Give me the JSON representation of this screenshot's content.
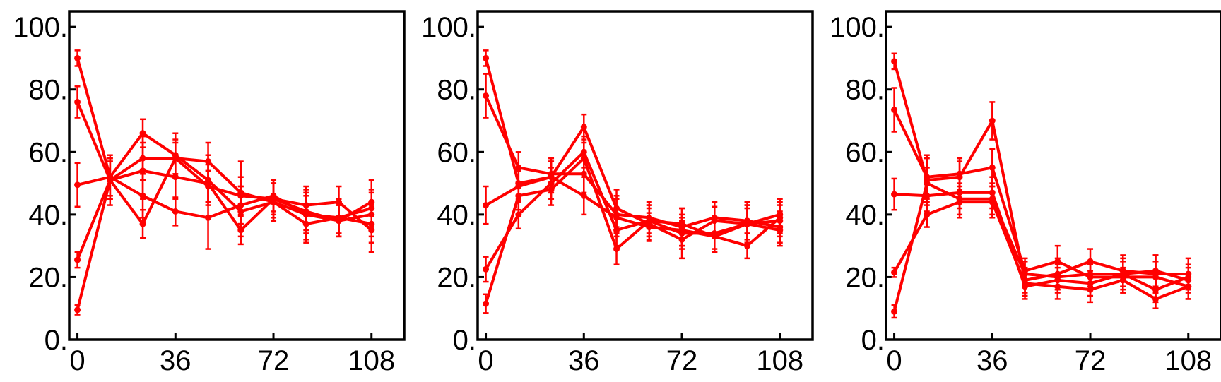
{
  "colors": {
    "series": "#ff0000",
    "axes": "#000000"
  },
  "chart_data": [
    {
      "type": "line",
      "xlim": [
        -3,
        120
      ],
      "ylim": [
        0,
        105
      ],
      "x": [
        0,
        12,
        24,
        36,
        48,
        60,
        72,
        84,
        96,
        108
      ],
      "xticks": [
        0,
        36,
        72,
        108
      ],
      "xtick_labels": [
        "0",
        "36",
        "72",
        "108"
      ],
      "yticks": [
        0,
        20,
        40,
        60,
        80,
        100
      ],
      "ytick_labels": [
        "0.",
        "20.",
        "40.",
        "60.",
        "80.",
        "100."
      ],
      "grid": false,
      "series": [
        {
          "values": [
            90,
            52,
            66,
            59,
            51,
            41,
            44,
            40,
            39,
            42
          ],
          "errors": [
            2.5,
            6,
            4.5,
            7,
            8,
            8,
            6,
            8,
            6,
            6
          ]
        },
        {
          "values": [
            76,
            51,
            37,
            58,
            57,
            47,
            44,
            37,
            39,
            37
          ],
          "errors": [
            5,
            6,
            4.5,
            6,
            6,
            10,
            6,
            6,
            5,
            6
          ]
        },
        {
          "values": [
            49.5,
            52,
            46,
            41,
            39,
            43,
            46,
            40,
            38,
            40
          ],
          "errors": [
            7,
            6,
            7,
            4.5,
            10,
            6,
            5,
            6,
            5,
            7
          ]
        },
        {
          "values": [
            25.5,
            51,
            58,
            58,
            49,
            46,
            45,
            43,
            44,
            35
          ],
          "errors": [
            2.5,
            8,
            7,
            5,
            5,
            6,
            5,
            6,
            5,
            7
          ]
        },
        {
          "values": [
            9.5,
            51,
            54,
            52,
            50,
            35,
            45,
            41,
            38,
            44
          ],
          "errors": [
            1.5,
            6,
            9,
            7,
            6,
            4.5,
            6,
            6,
            5,
            7
          ]
        }
      ]
    },
    {
      "type": "line",
      "xlim": [
        -3,
        120
      ],
      "ylim": [
        0,
        105
      ],
      "x": [
        0,
        12,
        24,
        36,
        48,
        60,
        72,
        84,
        96,
        108
      ],
      "xticks": [
        0,
        36,
        72,
        108
      ],
      "xtick_labels": [
        "0",
        "36",
        "72",
        "108"
      ],
      "yticks": [
        0,
        20,
        40,
        60,
        80,
        100
      ],
      "ytick_labels": [
        "0.",
        "20.",
        "40.",
        "60.",
        "80.",
        "100."
      ],
      "grid": false,
      "series": [
        {
          "values": [
            90,
            50,
            52,
            68,
            42,
            37,
            32,
            38,
            37,
            40
          ],
          "errors": [
            2.5,
            5,
            5,
            4,
            6,
            5,
            6,
            4.5,
            6,
            5
          ]
        },
        {
          "values": [
            78,
            55,
            53,
            53,
            40,
            39,
            36,
            39,
            38,
            36
          ],
          "errors": [
            7,
            5,
            5,
            6,
            6,
            5,
            6,
            5,
            6,
            5
          ]
        },
        {
          "values": [
            43,
            49,
            52,
            46,
            39,
            36,
            35,
            33,
            37,
            38
          ],
          "errors": [
            6,
            5,
            5,
            6,
            6,
            4.5,
            5,
            5,
            6,
            5
          ]
        },
        {
          "values": [
            22.5,
            40,
            50,
            60,
            35,
            38,
            34,
            34,
            37,
            35
          ],
          "errors": [
            4,
            4.5,
            5,
            5,
            5,
            5,
            5,
            5,
            5,
            5
          ]
        },
        {
          "values": [
            11.5,
            46,
            48,
            58,
            29,
            38,
            37,
            33,
            30,
            39
          ],
          "errors": [
            3,
            4.5,
            5,
            5,
            5,
            5,
            5,
            5,
            4,
            5
          ]
        }
      ]
    },
    {
      "type": "line",
      "xlim": [
        -3,
        120
      ],
      "ylim": [
        0,
        105
      ],
      "x": [
        0,
        12,
        24,
        36,
        48,
        60,
        72,
        84,
        96,
        108
      ],
      "xticks": [
        0,
        36,
        72,
        108
      ],
      "xtick_labels": [
        "0",
        "36",
        "72",
        "108"
      ],
      "yticks": [
        0,
        20,
        40,
        60,
        80,
        100
      ],
      "ytick_labels": [
        "0.",
        "20.",
        "40.",
        "60.",
        "80.",
        "100."
      ],
      "grid": false,
      "series": [
        {
          "values": [
            89,
            51,
            52,
            70,
            19,
            21,
            25,
            22,
            21,
            21
          ],
          "errors": [
            2.5,
            8,
            5,
            6,
            4,
            5,
            4,
            5,
            6,
            5
          ]
        },
        {
          "values": [
            73.5,
            52,
            53,
            55,
            22,
            25,
            20,
            20,
            20,
            17
          ],
          "errors": [
            7,
            6,
            5,
            6,
            4,
            5,
            4,
            5,
            5,
            4
          ]
        },
        {
          "values": [
            46.5,
            46,
            47,
            47,
            17,
            19,
            18,
            21,
            22,
            19
          ],
          "errors": [
            5,
            5,
            5,
            5,
            4,
            4,
            4,
            5,
            5,
            4
          ]
        },
        {
          "values": [
            21.5,
            40,
            44,
            44,
            18,
            17,
            16,
            19,
            13,
            17
          ],
          "errors": [
            1.5,
            4,
            5,
            5,
            4,
            4,
            4,
            4,
            3,
            4
          ]
        },
        {
          "values": [
            9,
            50,
            45,
            45,
            21,
            20,
            21,
            21,
            16,
            20
          ],
          "errors": [
            2,
            5,
            5,
            5,
            4,
            4,
            4,
            4,
            4,
            4
          ]
        }
      ]
    }
  ]
}
